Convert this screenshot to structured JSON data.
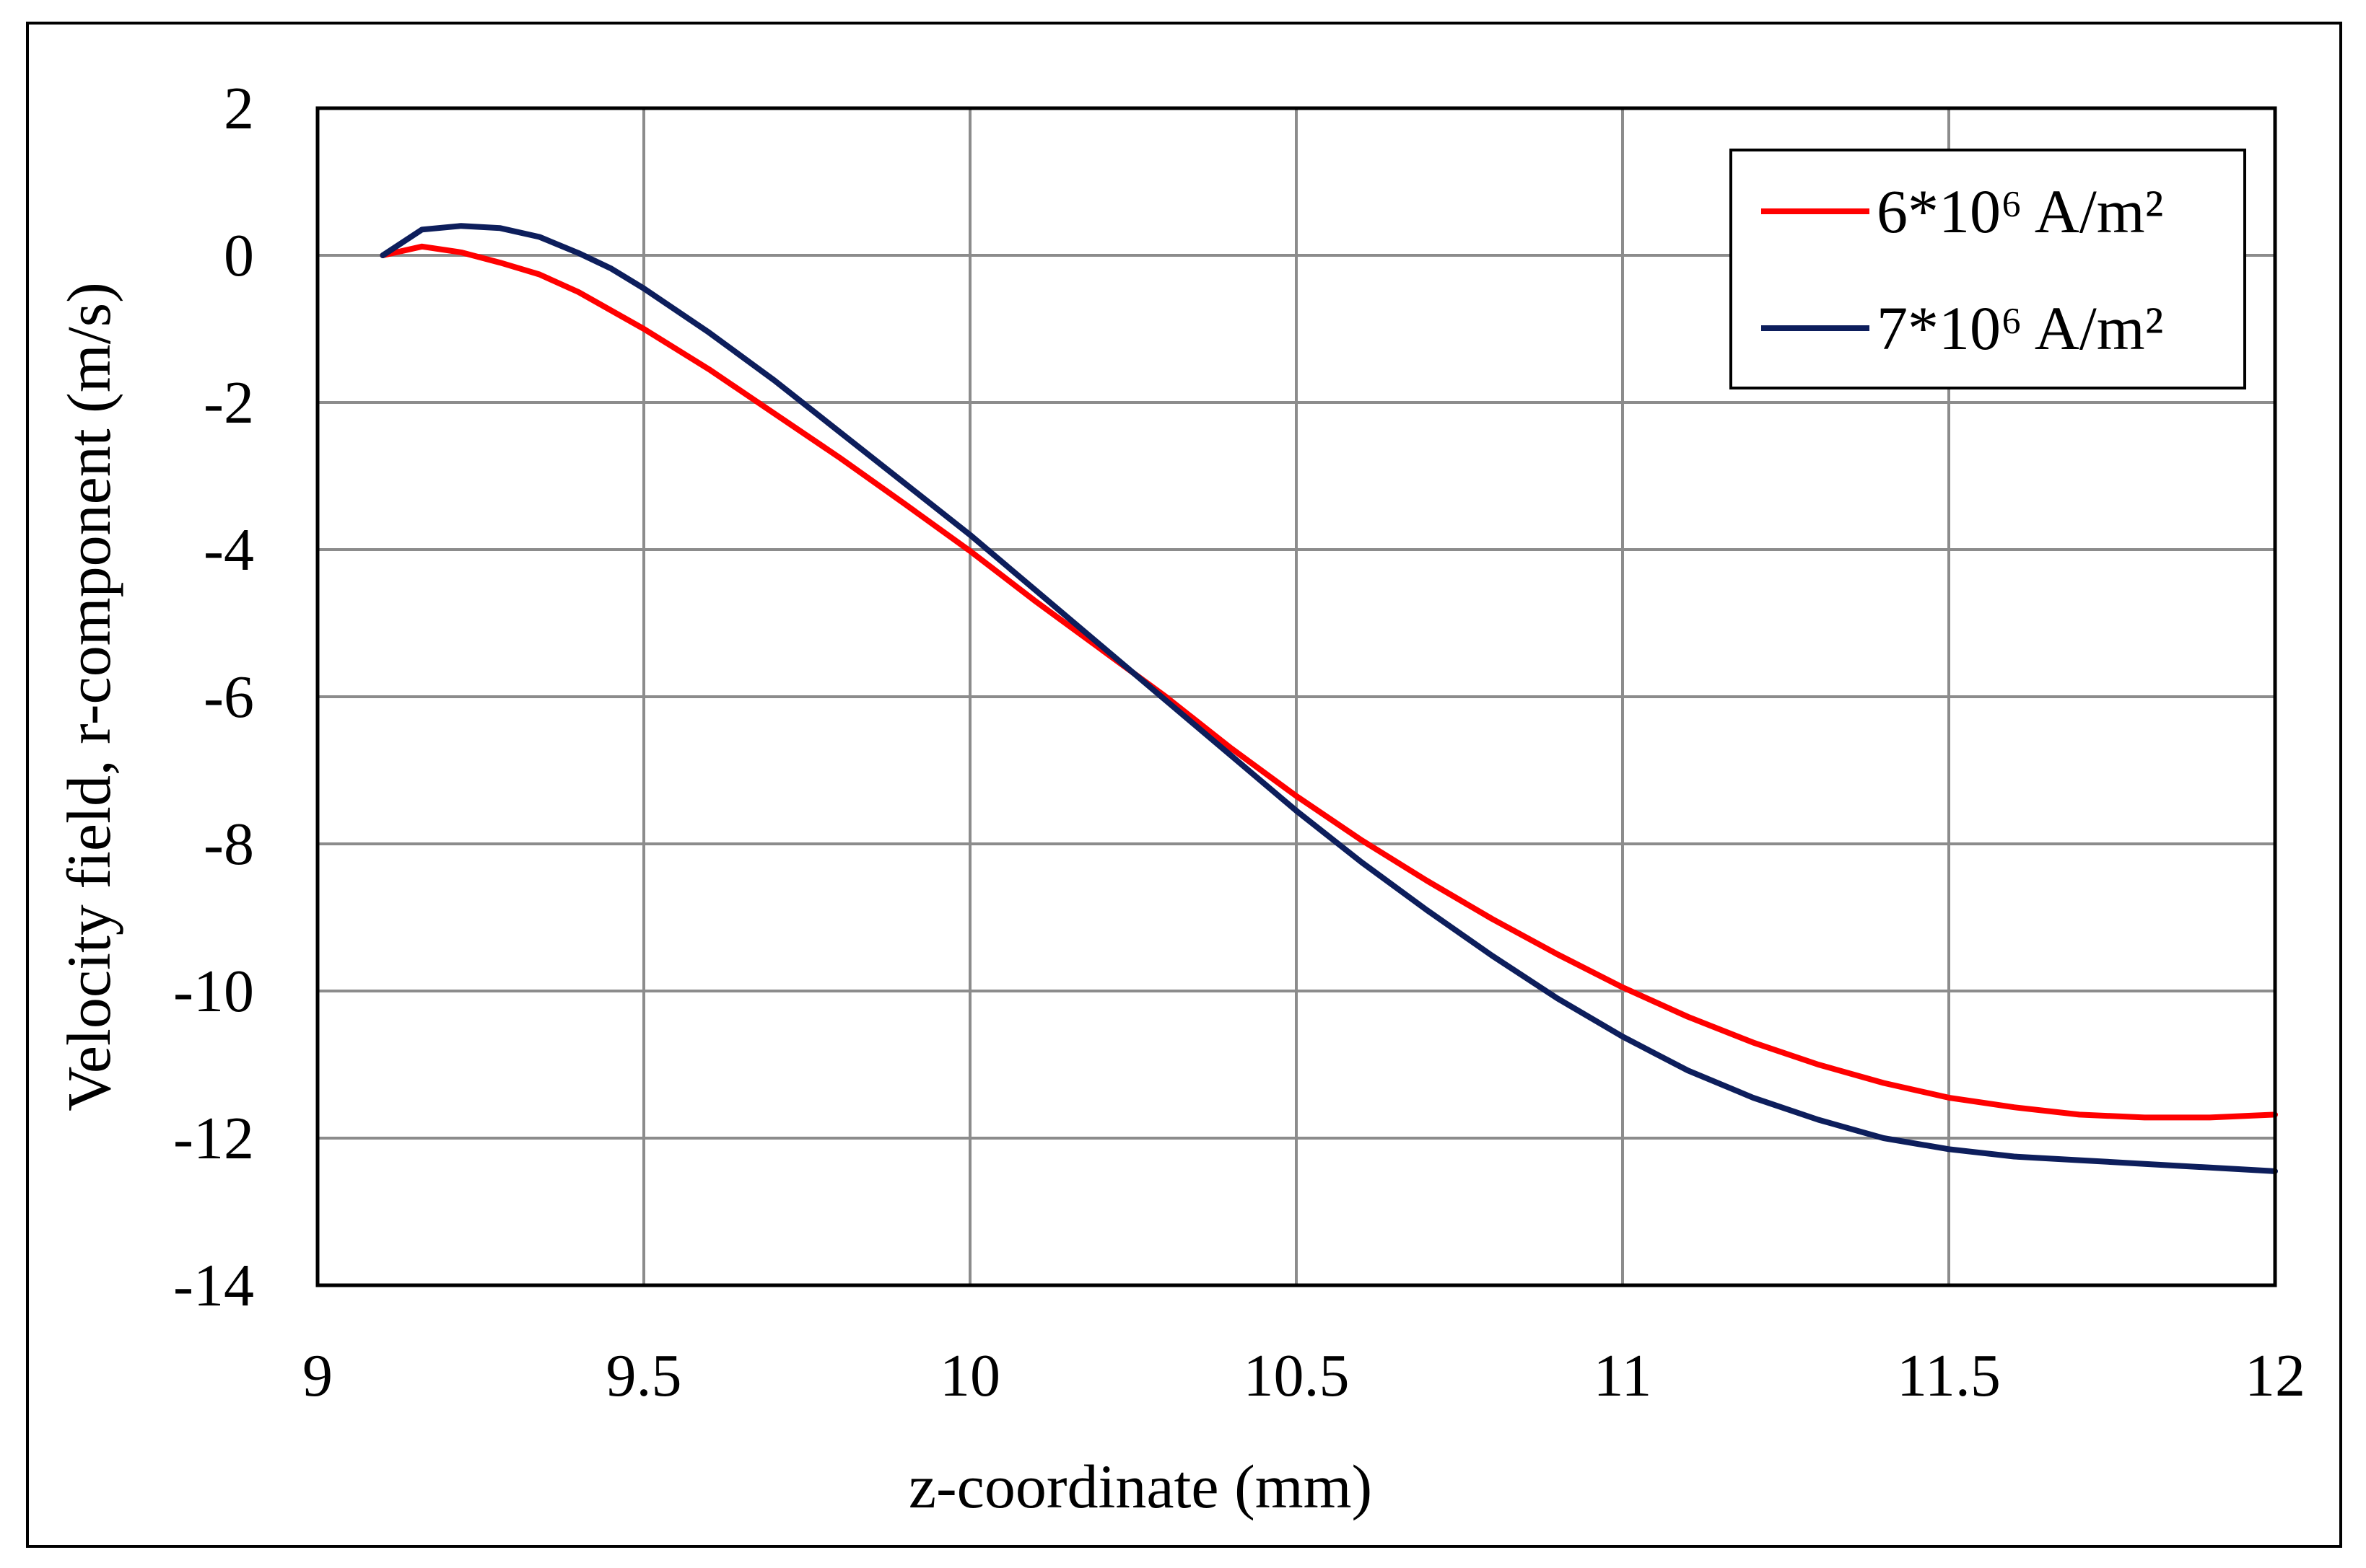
{
  "chart_data": {
    "type": "line",
    "title": "",
    "xlabel": "z-coordinate (mm)",
    "ylabel": "Velocity field, r-component (m/s)",
    "xlim": [
      9,
      12
    ],
    "ylim": [
      -14,
      2
    ],
    "xticks": [
      9,
      9.5,
      10,
      10.5,
      11,
      11.5,
      12
    ],
    "xtick_labels": [
      "9",
      "9.5",
      "10",
      "10.5",
      "11",
      "11.5",
      "12"
    ],
    "yticks": [
      2,
      0,
      -2,
      -4,
      -6,
      -8,
      -10,
      -12,
      -14
    ],
    "ytick_labels": [
      "2",
      "0",
      "-2",
      "-4",
      "-6",
      "-8",
      "-10",
      "-12",
      "-14"
    ],
    "grid": true,
    "legend_position": "top-right",
    "series": [
      {
        "name": "6*10⁶ A/m²",
        "color": "#ff0000",
        "x": [
          9.1,
          9.16,
          9.22,
          9.28,
          9.34,
          9.4,
          9.5,
          9.6,
          9.7,
          9.8,
          9.9,
          10.0,
          10.1,
          10.2,
          10.3,
          10.4,
          10.5,
          10.6,
          10.7,
          10.8,
          10.9,
          11.0,
          11.1,
          11.2,
          11.3,
          11.4,
          11.5,
          11.6,
          11.7,
          11.8,
          11.9,
          12.0
        ],
        "y": [
          0.0,
          0.12,
          0.04,
          -0.1,
          -0.26,
          -0.5,
          -1.0,
          -1.55,
          -2.15,
          -2.75,
          -3.38,
          -4.02,
          -4.7,
          -5.35,
          -6.0,
          -6.7,
          -7.35,
          -7.95,
          -8.5,
          -9.02,
          -9.5,
          -9.95,
          -10.35,
          -10.7,
          -11.0,
          -11.25,
          -11.45,
          -11.58,
          -11.68,
          -11.72,
          -11.72,
          -11.68
        ]
      },
      {
        "name": "7*10⁶ A/m²",
        "color": "#0d1e5c",
        "x": [
          9.1,
          9.16,
          9.22,
          9.28,
          9.34,
          9.4,
          9.45,
          9.5,
          9.6,
          9.7,
          9.8,
          9.9,
          10.0,
          10.1,
          10.2,
          10.3,
          10.4,
          10.5,
          10.6,
          10.7,
          10.8,
          10.9,
          11.0,
          11.1,
          11.2,
          11.3,
          11.4,
          11.5,
          11.6,
          11.7,
          11.8,
          11.9,
          12.0
        ],
        "y": [
          0.0,
          0.35,
          0.4,
          0.37,
          0.25,
          0.03,
          -0.18,
          -0.45,
          -1.05,
          -1.7,
          -2.4,
          -3.1,
          -3.8,
          -4.55,
          -5.3,
          -6.05,
          -6.8,
          -7.55,
          -8.25,
          -8.9,
          -9.52,
          -10.1,
          -10.62,
          -11.08,
          -11.45,
          -11.75,
          -12.0,
          -12.15,
          -12.25,
          -12.3,
          -12.35,
          -12.4,
          -12.45
        ]
      }
    ]
  }
}
